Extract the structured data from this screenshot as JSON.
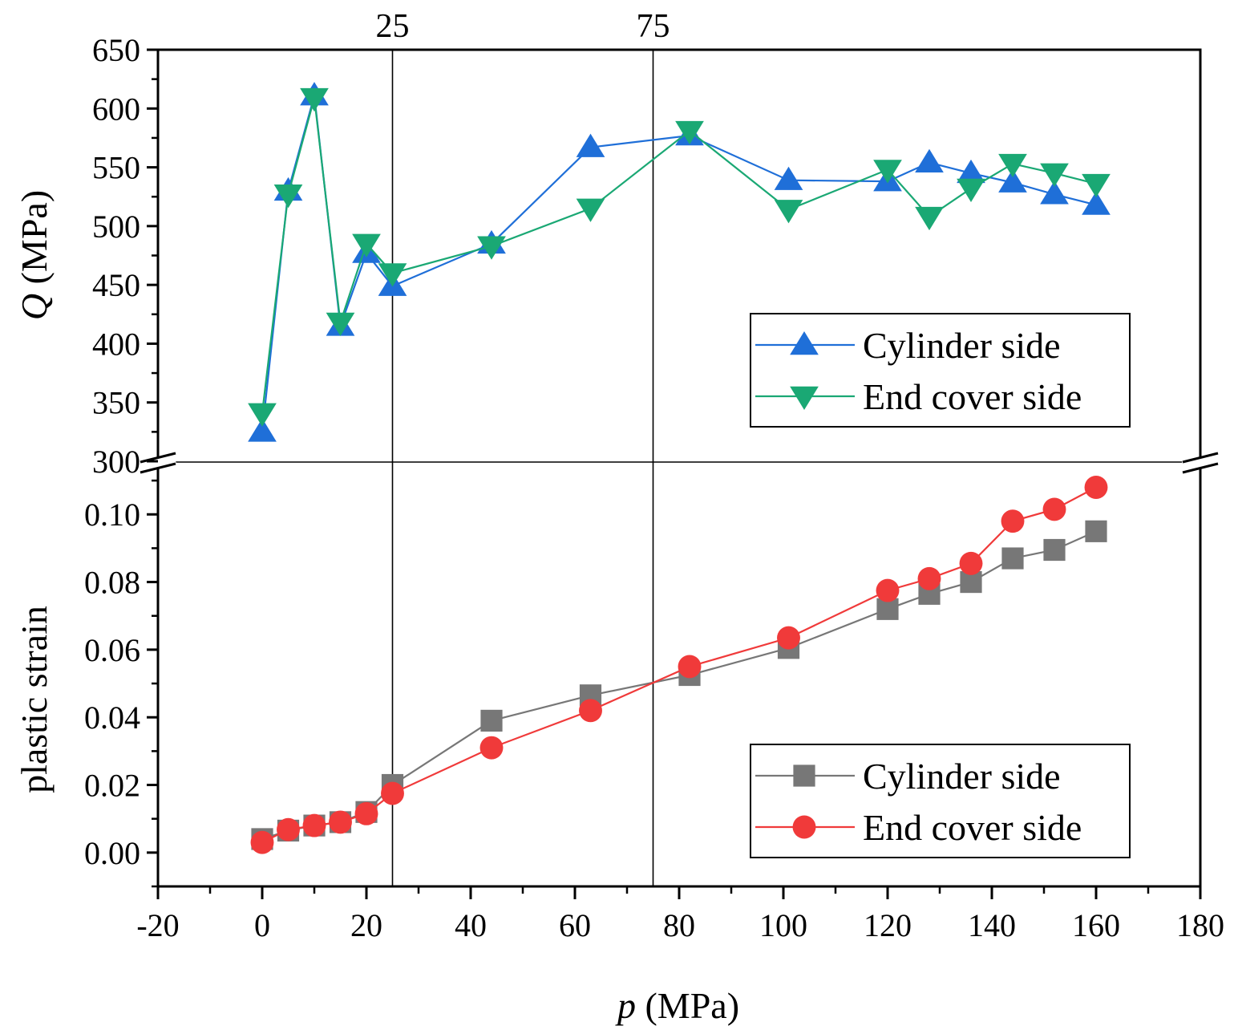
{
  "chart_data": [
    {
      "type": "line",
      "panel": "top",
      "ylabel": "Q (MPa)",
      "ylabel_italic": "Q",
      "ylabel_rest": " (MPa)",
      "ylim": [
        300,
        650
      ],
      "y_ticks": [
        "300",
        "350",
        "400",
        "450",
        "500",
        "550",
        "600",
        "650"
      ],
      "y_tick_values": [
        300,
        350,
        400,
        450,
        500,
        550,
        600,
        650
      ],
      "legend_position": "lower-right",
      "series": [
        {
          "name": "Cylinder side",
          "color": "#1f6fd8",
          "marker": "triangle-up",
          "x": [
            0,
            5,
            10,
            15,
            20,
            25,
            44,
            63,
            82,
            101,
            120,
            128,
            136,
            144,
            152,
            160
          ],
          "y": [
            325,
            530,
            611,
            415,
            477,
            449,
            485,
            567,
            577,
            539,
            538,
            554,
            545,
            537,
            527,
            518
          ]
        },
        {
          "name": "End cover side",
          "color": "#1aa874",
          "marker": "triangle-down",
          "x": [
            0,
            5,
            10,
            15,
            20,
            25,
            44,
            63,
            82,
            101,
            120,
            128,
            136,
            144,
            152,
            160
          ],
          "y": [
            341,
            527,
            609,
            418,
            485,
            460,
            483,
            515,
            581,
            514,
            548,
            508,
            532,
            553,
            545,
            536
          ]
        }
      ]
    },
    {
      "type": "line",
      "panel": "bottom",
      "ylabel": "plastic strain",
      "ylim": [
        -0.01,
        0.115
      ],
      "y_ticks": [
        "0.00",
        "0.02",
        "0.04",
        "0.06",
        "0.08",
        "0.10"
      ],
      "y_tick_values": [
        0,
        0.02,
        0.04,
        0.06,
        0.08,
        0.1
      ],
      "legend_position": "lower-right",
      "series": [
        {
          "name": "Cylinder side",
          "color": "#777777",
          "marker": "square",
          "x": [
            0,
            5,
            10,
            15,
            20,
            25,
            44,
            63,
            82,
            101,
            120,
            128,
            136,
            144,
            152,
            160
          ],
          "y": [
            0.004,
            0.0065,
            0.008,
            0.009,
            0.012,
            0.02,
            0.039,
            0.0465,
            0.0525,
            0.0605,
            0.072,
            0.0765,
            0.08,
            0.087,
            0.0895,
            0.095
          ]
        },
        {
          "name": "End cover side",
          "color": "#f03a3a",
          "marker": "circle",
          "x": [
            0,
            5,
            10,
            15,
            20,
            25,
            44,
            63,
            82,
            101,
            120,
            128,
            136,
            144,
            152,
            160
          ],
          "y": [
            0.003,
            0.0068,
            0.008,
            0.009,
            0.0115,
            0.0175,
            0.031,
            0.042,
            0.055,
            0.0635,
            0.0775,
            0.081,
            0.0855,
            0.098,
            0.1015,
            0.108
          ]
        }
      ]
    }
  ],
  "x_axis": {
    "label_italic": "p",
    "label_rest": " (MPa)",
    "xlim": [
      -20,
      180
    ],
    "ticks": [
      "-20",
      "0",
      "20",
      "40",
      "60",
      "80",
      "100",
      "120",
      "140",
      "160",
      "180"
    ],
    "tick_values": [
      -20,
      0,
      20,
      40,
      60,
      80,
      100,
      120,
      140,
      160,
      180
    ]
  },
  "reference_lines": {
    "values": [
      25,
      75
    ],
    "labels": [
      "25",
      "75"
    ]
  }
}
